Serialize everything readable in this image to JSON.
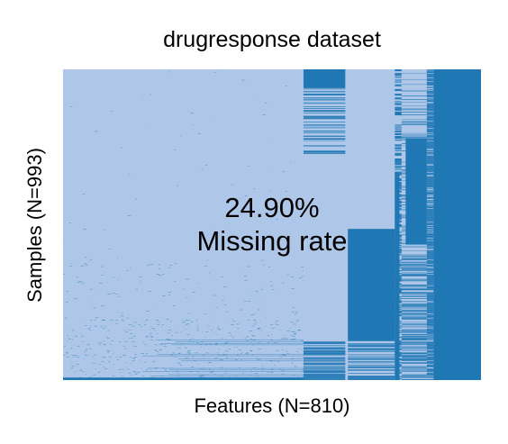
{
  "chart_data": {
    "type": "heatmap",
    "title": "drugresponse dataset",
    "xlabel": "Features (N=810)",
    "ylabel": "Samples (N=993)",
    "n_features": 810,
    "n_samples": 993,
    "missing_rate": 0.249,
    "annotation": {
      "percent": "24.90%",
      "label": "Missing rate"
    },
    "colors": {
      "observed": "#aec7e8",
      "missing": "#1f77b4"
    },
    "legend": "none",
    "grid": false,
    "x_ticks": "none",
    "y_ticks": "none"
  }
}
